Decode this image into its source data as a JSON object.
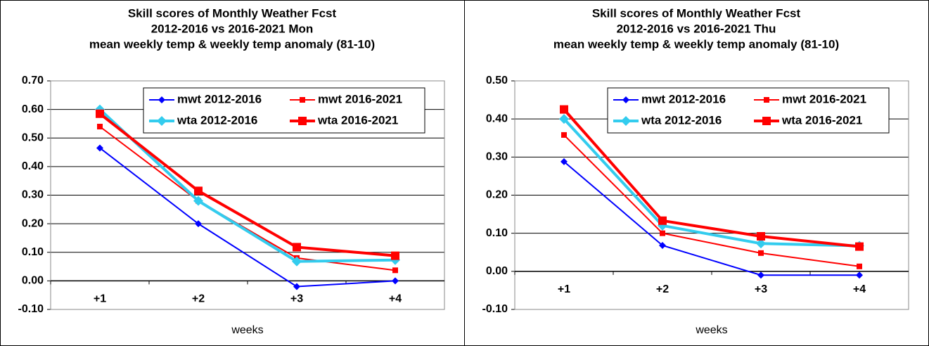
{
  "chart_data": [
    {
      "type": "line",
      "title": [
        "Skill scores of Monthly Weather Fcst",
        "2012-2016 vs 2016-2021 Mon",
        "mean weekly temp & weekly temp anomaly (81-10)"
      ],
      "x_label": "weeks",
      "categories": [
        "+1",
        "+2",
        "+3",
        "+4"
      ],
      "ylim": [
        -0.1,
        0.7
      ],
      "yticks": [
        {
          "value": -0.1,
          "label": "-0.10"
        },
        {
          "value": 0,
          "label": "0.00"
        },
        {
          "value": 0.1,
          "label": "0.10"
        },
        {
          "value": 0.2,
          "label": "0.20"
        },
        {
          "value": 0.3,
          "label": "0.30"
        },
        {
          "value": 0.4,
          "label": "0.40"
        },
        {
          "value": 0.5,
          "label": "0.50"
        },
        {
          "value": 0.6,
          "label": "0.60"
        },
        {
          "value": 0.7,
          "label": "0.70"
        }
      ],
      "grid": true,
      "legend": "upper right",
      "series": [
        {
          "name": "mwt 2012-2016",
          "color": "#0000ff",
          "line_width": 2,
          "marker": "diamond",
          "values": [
            0.465,
            0.2,
            -0.02,
            0.0
          ]
        },
        {
          "name": "mwt 2016-2021",
          "color": "#ff0000",
          "line_width": 2,
          "marker": "square",
          "values": [
            0.54,
            0.28,
            0.08,
            0.037
          ]
        },
        {
          "name": "wta 2012-2016",
          "color": "#33ccee",
          "line_width": 4,
          "marker": "diamond",
          "values": [
            0.6,
            0.28,
            0.068,
            0.073
          ]
        },
        {
          "name": "wta 2016-2021",
          "color": "#ff0000",
          "line_width": 4,
          "marker": "square",
          "values": [
            0.585,
            0.315,
            0.118,
            0.088
          ]
        }
      ]
    },
    {
      "type": "line",
      "title": [
        "Skill scores of Monthly Weather Fcst",
        "2012-2016 vs 2016-2021 Thu",
        "mean weekly temp & weekly temp anomaly (81-10)"
      ],
      "x_label": "weeks",
      "categories": [
        "+1",
        "+2",
        "+3",
        "+4"
      ],
      "ylim": [
        -0.1,
        0.5
      ],
      "yticks": [
        {
          "value": -0.1,
          "label": "-0.10"
        },
        {
          "value": 0,
          "label": "0.00"
        },
        {
          "value": 0.1,
          "label": "0.10"
        },
        {
          "value": 0.2,
          "label": "0.20"
        },
        {
          "value": 0.3,
          "label": "0.30"
        },
        {
          "value": 0.4,
          "label": "0.40"
        },
        {
          "value": 0.5,
          "label": "0.50"
        }
      ],
      "grid": true,
      "legend": "upper right",
      "series": [
        {
          "name": "mwt 2012-2016",
          "color": "#0000ff",
          "line_width": 2,
          "marker": "diamond",
          "values": [
            0.288,
            0.068,
            -0.01,
            -0.01
          ]
        },
        {
          "name": "mwt 2016-2021",
          "color": "#ff0000",
          "line_width": 2,
          "marker": "square",
          "values": [
            0.358,
            0.1,
            0.048,
            0.013
          ]
        },
        {
          "name": "wta 2012-2016",
          "color": "#33ccee",
          "line_width": 4,
          "marker": "diamond",
          "values": [
            0.4,
            0.12,
            0.073,
            0.067
          ]
        },
        {
          "name": "wta 2016-2021",
          "color": "#ff0000",
          "line_width": 4,
          "marker": "square",
          "values": [
            0.425,
            0.133,
            0.092,
            0.065
          ]
        }
      ]
    }
  ]
}
